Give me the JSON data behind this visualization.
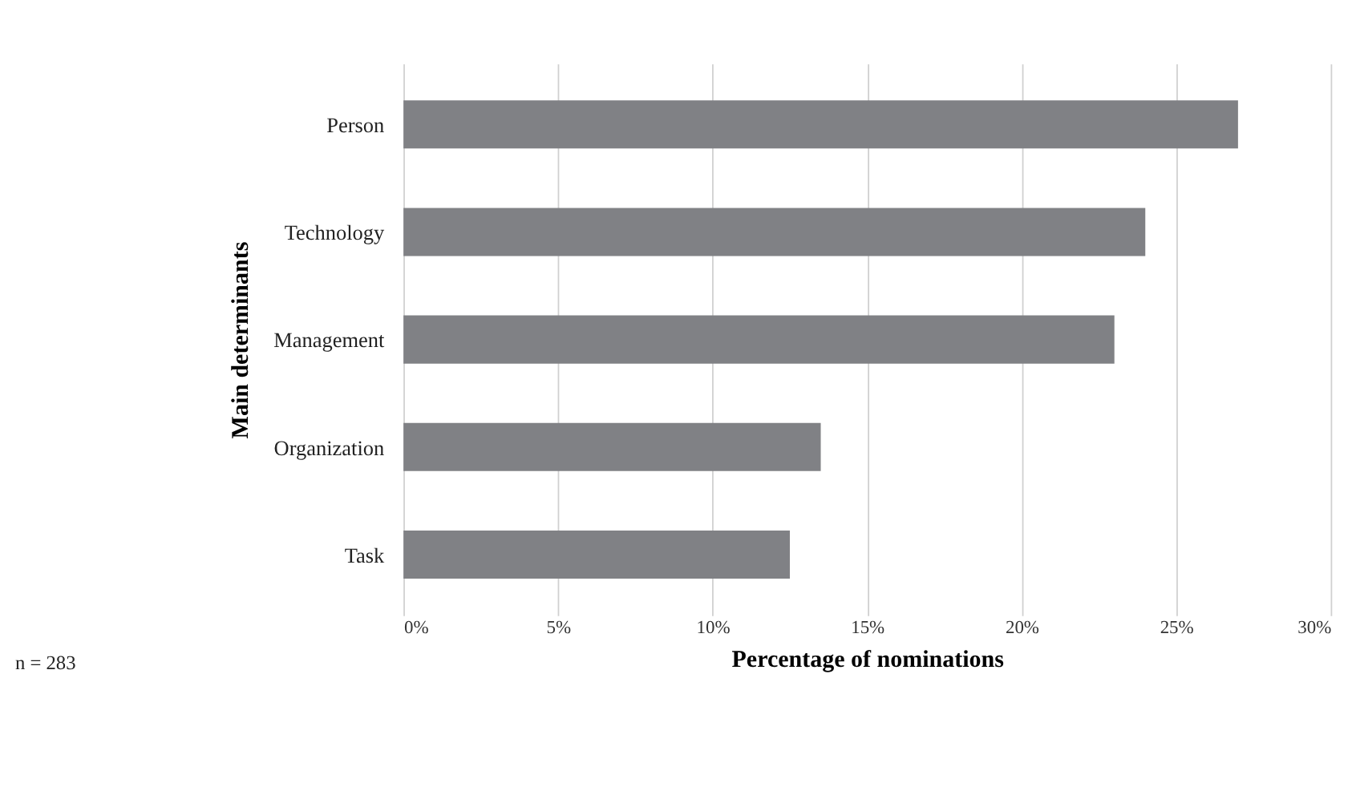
{
  "chart_data": {
    "type": "bar",
    "orientation": "horizontal",
    "categories": [
      "Person",
      "Technology",
      "Management",
      "Organization",
      "Task"
    ],
    "values": [
      27,
      24,
      23,
      13.5,
      12.5
    ],
    "color": "#808185",
    "xlim": [
      0,
      30
    ],
    "xticks": [
      {
        "value": 0,
        "label": "0%"
      },
      {
        "value": 5,
        "label": "5%"
      },
      {
        "value": 10,
        "label": "10%"
      },
      {
        "value": 15,
        "label": "15%"
      },
      {
        "value": 20,
        "label": "20%"
      },
      {
        "value": 25,
        "label": "25%"
      },
      {
        "value": 30,
        "label": "30%"
      }
    ],
    "xlabel": "Percentage of nominations",
    "ylabel": "Main determinants",
    "grid": "x",
    "annotations": [
      "n = 283"
    ]
  }
}
